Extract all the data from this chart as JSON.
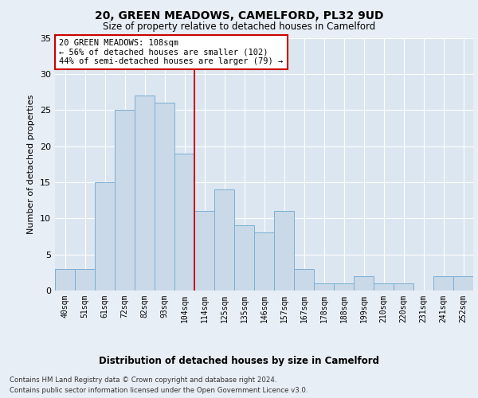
{
  "title": "20, GREEN MEADOWS, CAMELFORD, PL32 9UD",
  "subtitle": "Size of property relative to detached houses in Camelford",
  "xlabel": "Distribution of detached houses by size in Camelford",
  "ylabel": "Number of detached properties",
  "categories": [
    "40sqm",
    "51sqm",
    "61sqm",
    "72sqm",
    "82sqm",
    "93sqm",
    "104sqm",
    "114sqm",
    "125sqm",
    "135sqm",
    "146sqm",
    "157sqm",
    "167sqm",
    "178sqm",
    "188sqm",
    "199sqm",
    "210sqm",
    "220sqm",
    "231sqm",
    "241sqm",
    "252sqm"
  ],
  "values": [
    3,
    3,
    15,
    25,
    27,
    26,
    19,
    11,
    14,
    9,
    8,
    11,
    3,
    1,
    1,
    2,
    1,
    1,
    0,
    2,
    2
  ],
  "bar_color": "#c9d9e8",
  "bar_edge_color": "#7bafd4",
  "highlight_index": 6,
  "highlight_line_color": "#cc0000",
  "annotation_text": "20 GREEN MEADOWS: 108sqm\n← 56% of detached houses are smaller (102)\n44% of semi-detached houses are larger (79) →",
  "annotation_box_color": "#ffffff",
  "annotation_box_edge": "#cc0000",
  "ylim": [
    0,
    35
  ],
  "yticks": [
    0,
    5,
    10,
    15,
    20,
    25,
    30,
    35
  ],
  "fig_bg_color": "#e8eef5",
  "plot_bg_color": "#dce6f0",
  "grid_color": "#ffffff",
  "footer_line1": "Contains HM Land Registry data © Crown copyright and database right 2024.",
  "footer_line2": "Contains public sector information licensed under the Open Government Licence v3.0."
}
